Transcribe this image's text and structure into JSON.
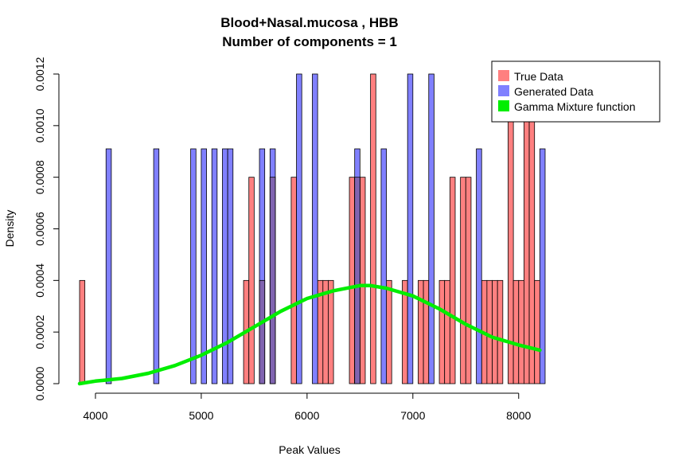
{
  "chart_data": {
    "type": "bar",
    "title": "Blood+Nasal.mucosa , HBB",
    "subtitle": "Number of components =  1",
    "xlabel": "Peak Values",
    "ylabel": "Density",
    "xlim": [
      3850,
      8250
    ],
    "ylim": [
      0,
      0.0012
    ],
    "xticks": [
      "4000",
      "5000",
      "6000",
      "7000",
      "8000"
    ],
    "xtick_values": [
      4000,
      5000,
      6000,
      7000,
      8000
    ],
    "yticks": [
      "0.0000",
      "0.0002",
      "0.0004",
      "0.0006",
      "0.0008",
      "0.0010",
      "0.0012"
    ],
    "ytick_values": [
      0,
      0.0002,
      0.0004,
      0.0006,
      0.0008,
      0.001,
      0.0012
    ],
    "bin_width": 50,
    "legend_position": "top-right",
    "colors": {
      "true_data": "#ff8080",
      "generated_data": "#8080ff",
      "overlap": "#8064b0",
      "gamma_curve": "#00ee00"
    },
    "series": [
      {
        "name": "True Data",
        "bins": [
          {
            "x": 3850,
            "y": 0.0004
          },
          {
            "x": 5400,
            "y": 0.0004
          },
          {
            "x": 5450,
            "y": 0.0008
          },
          {
            "x": 5550,
            "y": 0.0004
          },
          {
            "x": 5650,
            "y": 0.0008
          },
          {
            "x": 5850,
            "y": 0.0008
          },
          {
            "x": 6100,
            "y": 0.0004
          },
          {
            "x": 6150,
            "y": 0.0004
          },
          {
            "x": 6200,
            "y": 0.0004
          },
          {
            "x": 6400,
            "y": 0.0008
          },
          {
            "x": 6450,
            "y": 0.0008
          },
          {
            "x": 6500,
            "y": 0.0008
          },
          {
            "x": 6600,
            "y": 0.0012
          },
          {
            "x": 6750,
            "y": 0.0004
          },
          {
            "x": 6900,
            "y": 0.0004
          },
          {
            "x": 7050,
            "y": 0.0004
          },
          {
            "x": 7100,
            "y": 0.0004
          },
          {
            "x": 7250,
            "y": 0.0004
          },
          {
            "x": 7300,
            "y": 0.0004
          },
          {
            "x": 7350,
            "y": 0.0008
          },
          {
            "x": 7450,
            "y": 0.0008
          },
          {
            "x": 7500,
            "y": 0.0008
          },
          {
            "x": 7650,
            "y": 0.0004
          },
          {
            "x": 7700,
            "y": 0.0004
          },
          {
            "x": 7750,
            "y": 0.0004
          },
          {
            "x": 7800,
            "y": 0.0004
          },
          {
            "x": 7900,
            "y": 0.0012
          },
          {
            "x": 7950,
            "y": 0.0004
          },
          {
            "x": 8000,
            "y": 0.0004
          },
          {
            "x": 8050,
            "y": 0.0012
          },
          {
            "x": 8100,
            "y": 0.0012
          },
          {
            "x": 8150,
            "y": 0.0004
          }
        ]
      },
      {
        "name": "Generated Data",
        "bins": [
          {
            "x": 4100,
            "y": 0.00091
          },
          {
            "x": 4550,
            "y": 0.00091
          },
          {
            "x": 4900,
            "y": 0.00091
          },
          {
            "x": 5000,
            "y": 0.00091
          },
          {
            "x": 5100,
            "y": 0.00091
          },
          {
            "x": 5200,
            "y": 0.00091
          },
          {
            "x": 5250,
            "y": 0.00091
          },
          {
            "x": 5550,
            "y": 0.00091
          },
          {
            "x": 5650,
            "y": 0.00091
          },
          {
            "x": 5900,
            "y": 0.0012
          },
          {
            "x": 6050,
            "y": 0.0012
          },
          {
            "x": 6450,
            "y": 0.00091
          },
          {
            "x": 6700,
            "y": 0.00091
          },
          {
            "x": 6950,
            "y": 0.0012
          },
          {
            "x": 7150,
            "y": 0.0012
          },
          {
            "x": 7600,
            "y": 0.00091
          },
          {
            "x": 8200,
            "y": 0.00091
          }
        ]
      },
      {
        "name": "Gamma Mixture function",
        "type": "line",
        "x": [
          3850,
          4000,
          4250,
          4500,
          4750,
          5000,
          5250,
          5500,
          5750,
          6000,
          6250,
          6500,
          6600,
          6750,
          7000,
          7250,
          7500,
          7750,
          8000,
          8200
        ],
        "y": [
          0.0,
          1e-05,
          2e-05,
          4e-05,
          7e-05,
          0.00011,
          0.00016,
          0.00022,
          0.00028,
          0.00033,
          0.00036,
          0.00038,
          0.00038,
          0.00037,
          0.00034,
          0.00029,
          0.00023,
          0.00018,
          0.00015,
          0.00013
        ]
      }
    ]
  }
}
